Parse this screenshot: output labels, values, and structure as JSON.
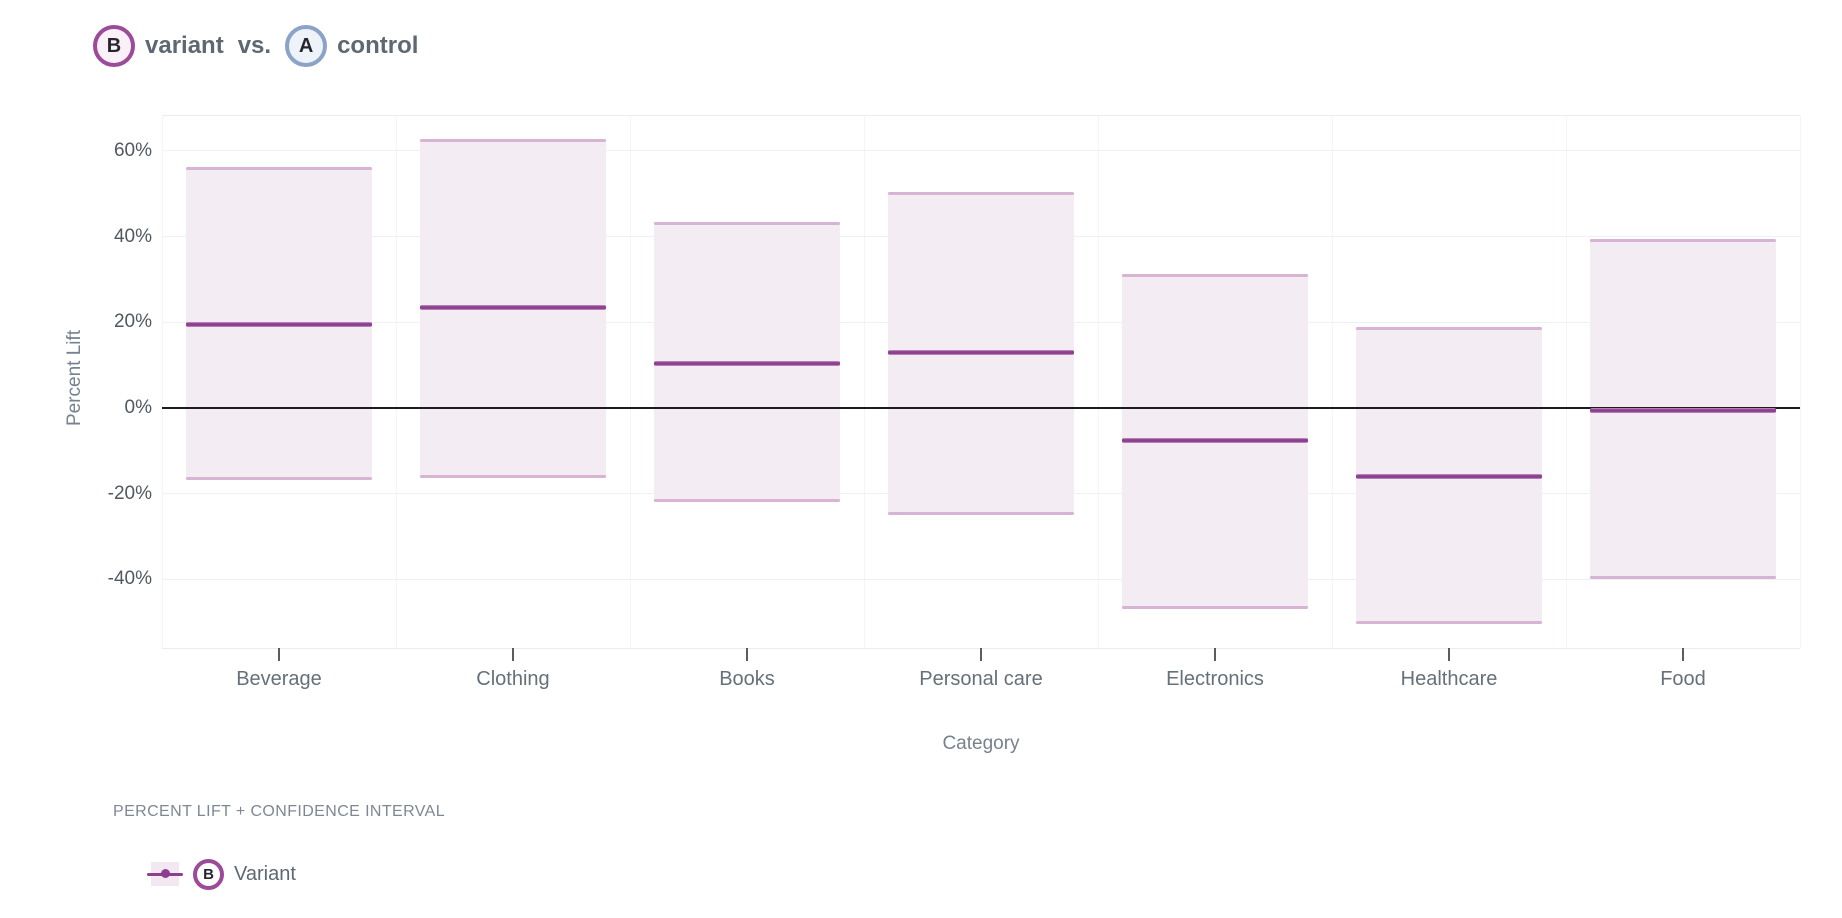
{
  "header": {
    "variant_badge": "B",
    "variant_label": "variant",
    "vs_label": "vs.",
    "control_badge": "A",
    "control_label": "control"
  },
  "chart_data": {
    "type": "bar",
    "subtype": "lift-confidence-interval",
    "title": "B variant vs. A control",
    "xlabel": "Category",
    "ylabel": "Percent Lift",
    "categories": [
      "Beverage",
      "Clothing",
      "Books",
      "Personal care",
      "Electronics",
      "Healthcare",
      "Food"
    ],
    "series": [
      {
        "name": "Variant",
        "badge": "B",
        "lift_pct": [
          19.5,
          23.5,
          10.5,
          13,
          -7.5,
          -16,
          -0.5
        ],
        "ci_high_pct": [
          56,
          62.5,
          43,
          50,
          31,
          18.5,
          39
        ],
        "ci_low_pct": [
          -16.5,
          -16,
          -21.5,
          -24.5,
          -46.5,
          -50,
          -39.5
        ]
      }
    ],
    "y_ticks": [
      {
        "value": 60,
        "label": "60%"
      },
      {
        "value": 40,
        "label": "40%"
      },
      {
        "value": 20,
        "label": "20%"
      },
      {
        "value": 0,
        "label": "0%"
      },
      {
        "value": -20,
        "label": "-20%"
      },
      {
        "value": -40,
        "label": "-40%"
      }
    ],
    "ylim": [
      -56,
      68.4
    ],
    "zero_line": true,
    "grid": true,
    "legend_position": "bottom-left",
    "colors": {
      "band_fill": "#f4ecf3",
      "band_edge": "#d7b3d4",
      "median_line": "#8d3f8f",
      "zero_line": "#1c1c1e",
      "grid_h": "#edf1f5",
      "grid_v": "#f2f5f9",
      "plot_border": "#e9edf2",
      "tick_mark": "#565d64",
      "accent_purple": "#9c4b9a",
      "accent_blue": "#8ba3c7",
      "badge_b_fill": "#f9f0f8",
      "badge_a_fill": "#eef2f9"
    }
  },
  "footer": {
    "caption": "PERCENT LIFT + CONFIDENCE INTERVAL",
    "legend": {
      "badge": "B",
      "label": "Variant"
    }
  }
}
